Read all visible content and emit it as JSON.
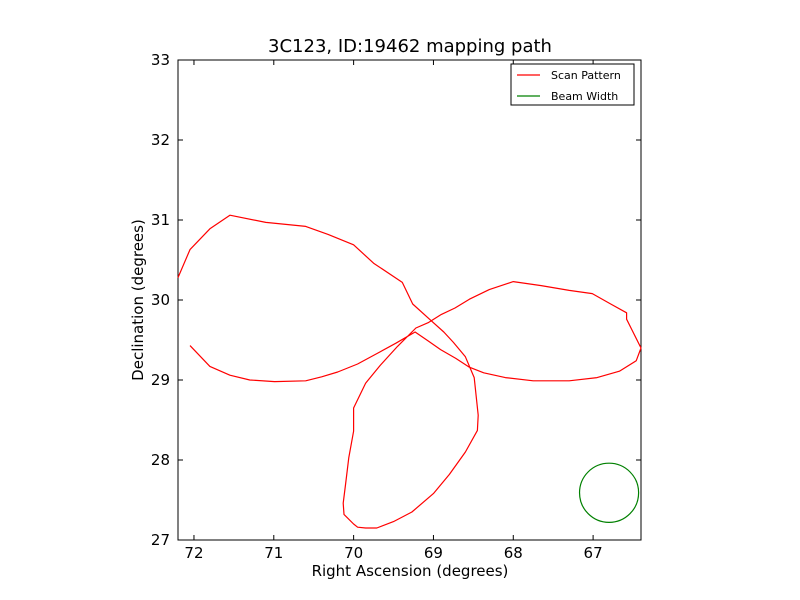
{
  "chart_data": {
    "type": "line",
    "title": "3C123, ID:19462 mapping path",
    "xlabel": "Right Ascension (degrees)",
    "ylabel": "Declination (degrees)",
    "xlim": [
      72.2,
      66.4
    ],
    "ylim": [
      27,
      33
    ],
    "x_inverted": true,
    "xticks": [
      "72",
      "71",
      "70",
      "69",
      "68",
      "67"
    ],
    "yticks": [
      "27",
      "28",
      "29",
      "30",
      "31",
      "32",
      "33"
    ],
    "grid": false,
    "legend_position": "top-right",
    "series": [
      {
        "name": "Scan Pattern",
        "color": "#ff0000",
        "x": [
          72.05,
          71.8,
          71.55,
          71.3,
          70.99,
          70.6,
          70.4,
          70.2,
          69.95,
          69.71,
          69.47,
          69.23,
          69.07,
          68.91,
          68.72,
          68.55,
          68.37,
          68.1,
          67.75,
          67.3,
          66.95,
          66.67,
          66.46,
          66.4,
          66.5,
          66.58,
          66.58,
          66.78,
          67.01,
          67.3,
          67.65,
          68.0,
          68.3,
          68.55,
          68.73,
          68.9,
          69.06,
          69.22,
          69.45,
          69.67,
          69.85,
          70.0,
          70.0,
          70.06,
          70.1,
          70.13,
          70.12,
          70.0,
          69.95,
          69.85,
          69.71,
          69.5,
          69.27,
          69.0,
          68.8,
          68.6,
          68.45,
          68.44,
          68.49,
          68.6,
          68.75,
          68.87,
          69.05,
          69.26,
          69.39,
          69.75,
          70.0,
          70.32,
          70.6,
          71.1,
          71.55,
          71.8,
          72.05,
          72.2
        ],
        "y": [
          29.43,
          29.17,
          29.06,
          29.0,
          28.98,
          28.99,
          29.04,
          29.1,
          29.2,
          29.33,
          29.46,
          29.6,
          29.49,
          29.38,
          29.27,
          29.16,
          29.09,
          29.03,
          28.99,
          28.99,
          29.03,
          29.11,
          29.24,
          29.4,
          29.6,
          29.76,
          29.84,
          29.95,
          30.08,
          30.12,
          30.18,
          30.23,
          30.13,
          30.01,
          29.9,
          29.82,
          29.72,
          29.65,
          29.42,
          29.18,
          28.96,
          28.65,
          28.36,
          28.03,
          27.7,
          27.46,
          27.32,
          27.2,
          27.16,
          27.15,
          27.15,
          27.23,
          27.35,
          27.58,
          27.82,
          28.1,
          28.37,
          28.56,
          29.03,
          29.29,
          29.47,
          29.6,
          29.76,
          29.95,
          30.22,
          30.46,
          30.69,
          30.82,
          30.92,
          30.97,
          31.06,
          30.89,
          30.63,
          30.28
        ]
      },
      {
        "name": "Beam Width",
        "color": "#008000",
        "shape": "circle",
        "center": [
          66.8,
          27.59
        ],
        "radius": 0.37
      }
    ]
  }
}
